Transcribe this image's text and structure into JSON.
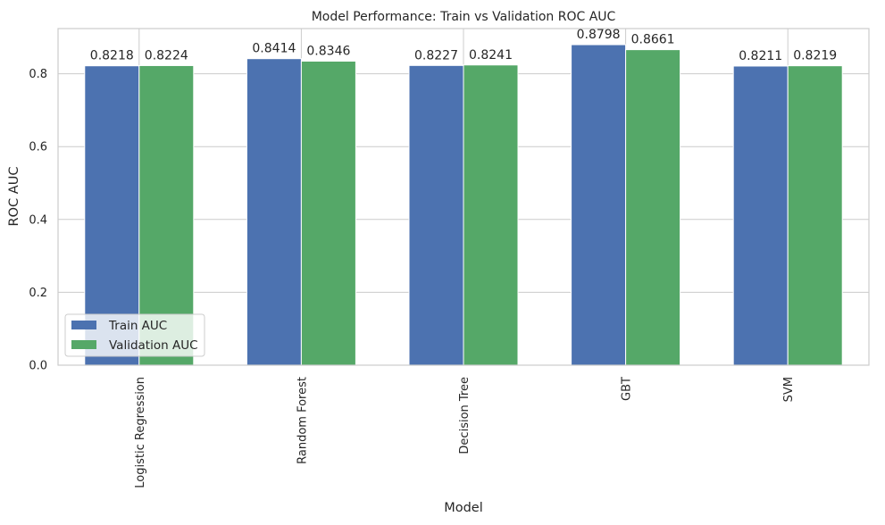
{
  "chart_data": {
    "type": "bar",
    "title": "Model Performance: Train vs Validation ROC AUC",
    "xlabel": "Model",
    "ylabel": "ROC AUC",
    "categories": [
      "Logistic Regression",
      "Random Forest",
      "Decision Tree",
      "GBT",
      "SVM"
    ],
    "series": [
      {
        "name": "Train AUC",
        "color": "#4c72b0",
        "values": [
          0.8218,
          0.8414,
          0.8227,
          0.8798,
          0.8211
        ]
      },
      {
        "name": "Validation AUC",
        "color": "#55a868",
        "values": [
          0.8224,
          0.8346,
          0.8241,
          0.8661,
          0.8219
        ]
      }
    ],
    "data_labels": [
      [
        "0.8218",
        "0.8414",
        "0.8227",
        "0.8798",
        "0.8211"
      ],
      [
        "0.8224",
        "0.8346",
        "0.8241",
        "0.8661",
        "0.8219"
      ]
    ],
    "ylim": [
      0,
      0.924
    ],
    "yticks": [
      "0.0",
      "0.2",
      "0.4",
      "0.6",
      "0.8"
    ],
    "ytick_values": [
      0,
      0.2,
      0.4,
      0.6,
      0.8
    ],
    "grid": true,
    "legend_position": "lower-left",
    "xtick_rotation": "vertical"
  }
}
